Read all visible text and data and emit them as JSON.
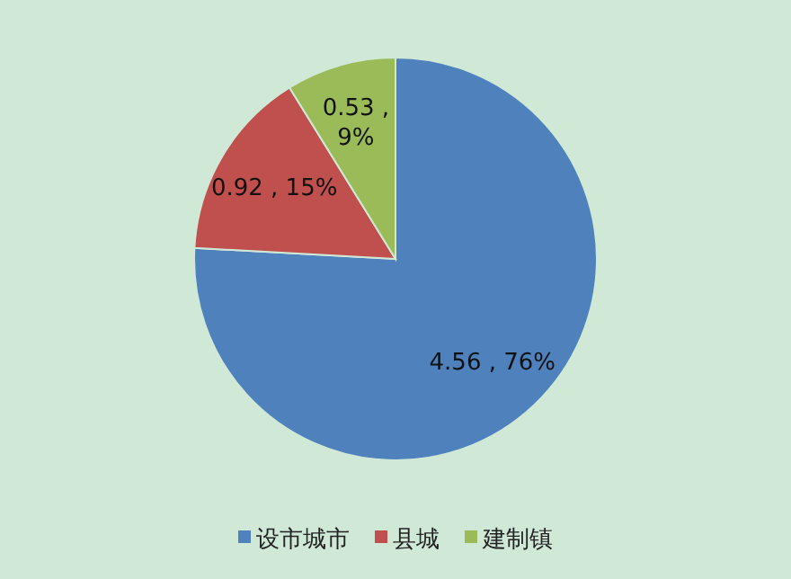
{
  "chart_data": {
    "type": "pie",
    "categories": [
      "设市城市",
      "县城",
      "建制镇"
    ],
    "values": [
      4.56,
      0.92,
      0.53
    ],
    "colors": [
      "#4f81bd",
      "#c0504d",
      "#9bbb59"
    ],
    "value_labels": [
      "4.56 , 76%",
      "0.92 , 15%",
      "0.53 , 9%"
    ],
    "legend": "bottom"
  }
}
